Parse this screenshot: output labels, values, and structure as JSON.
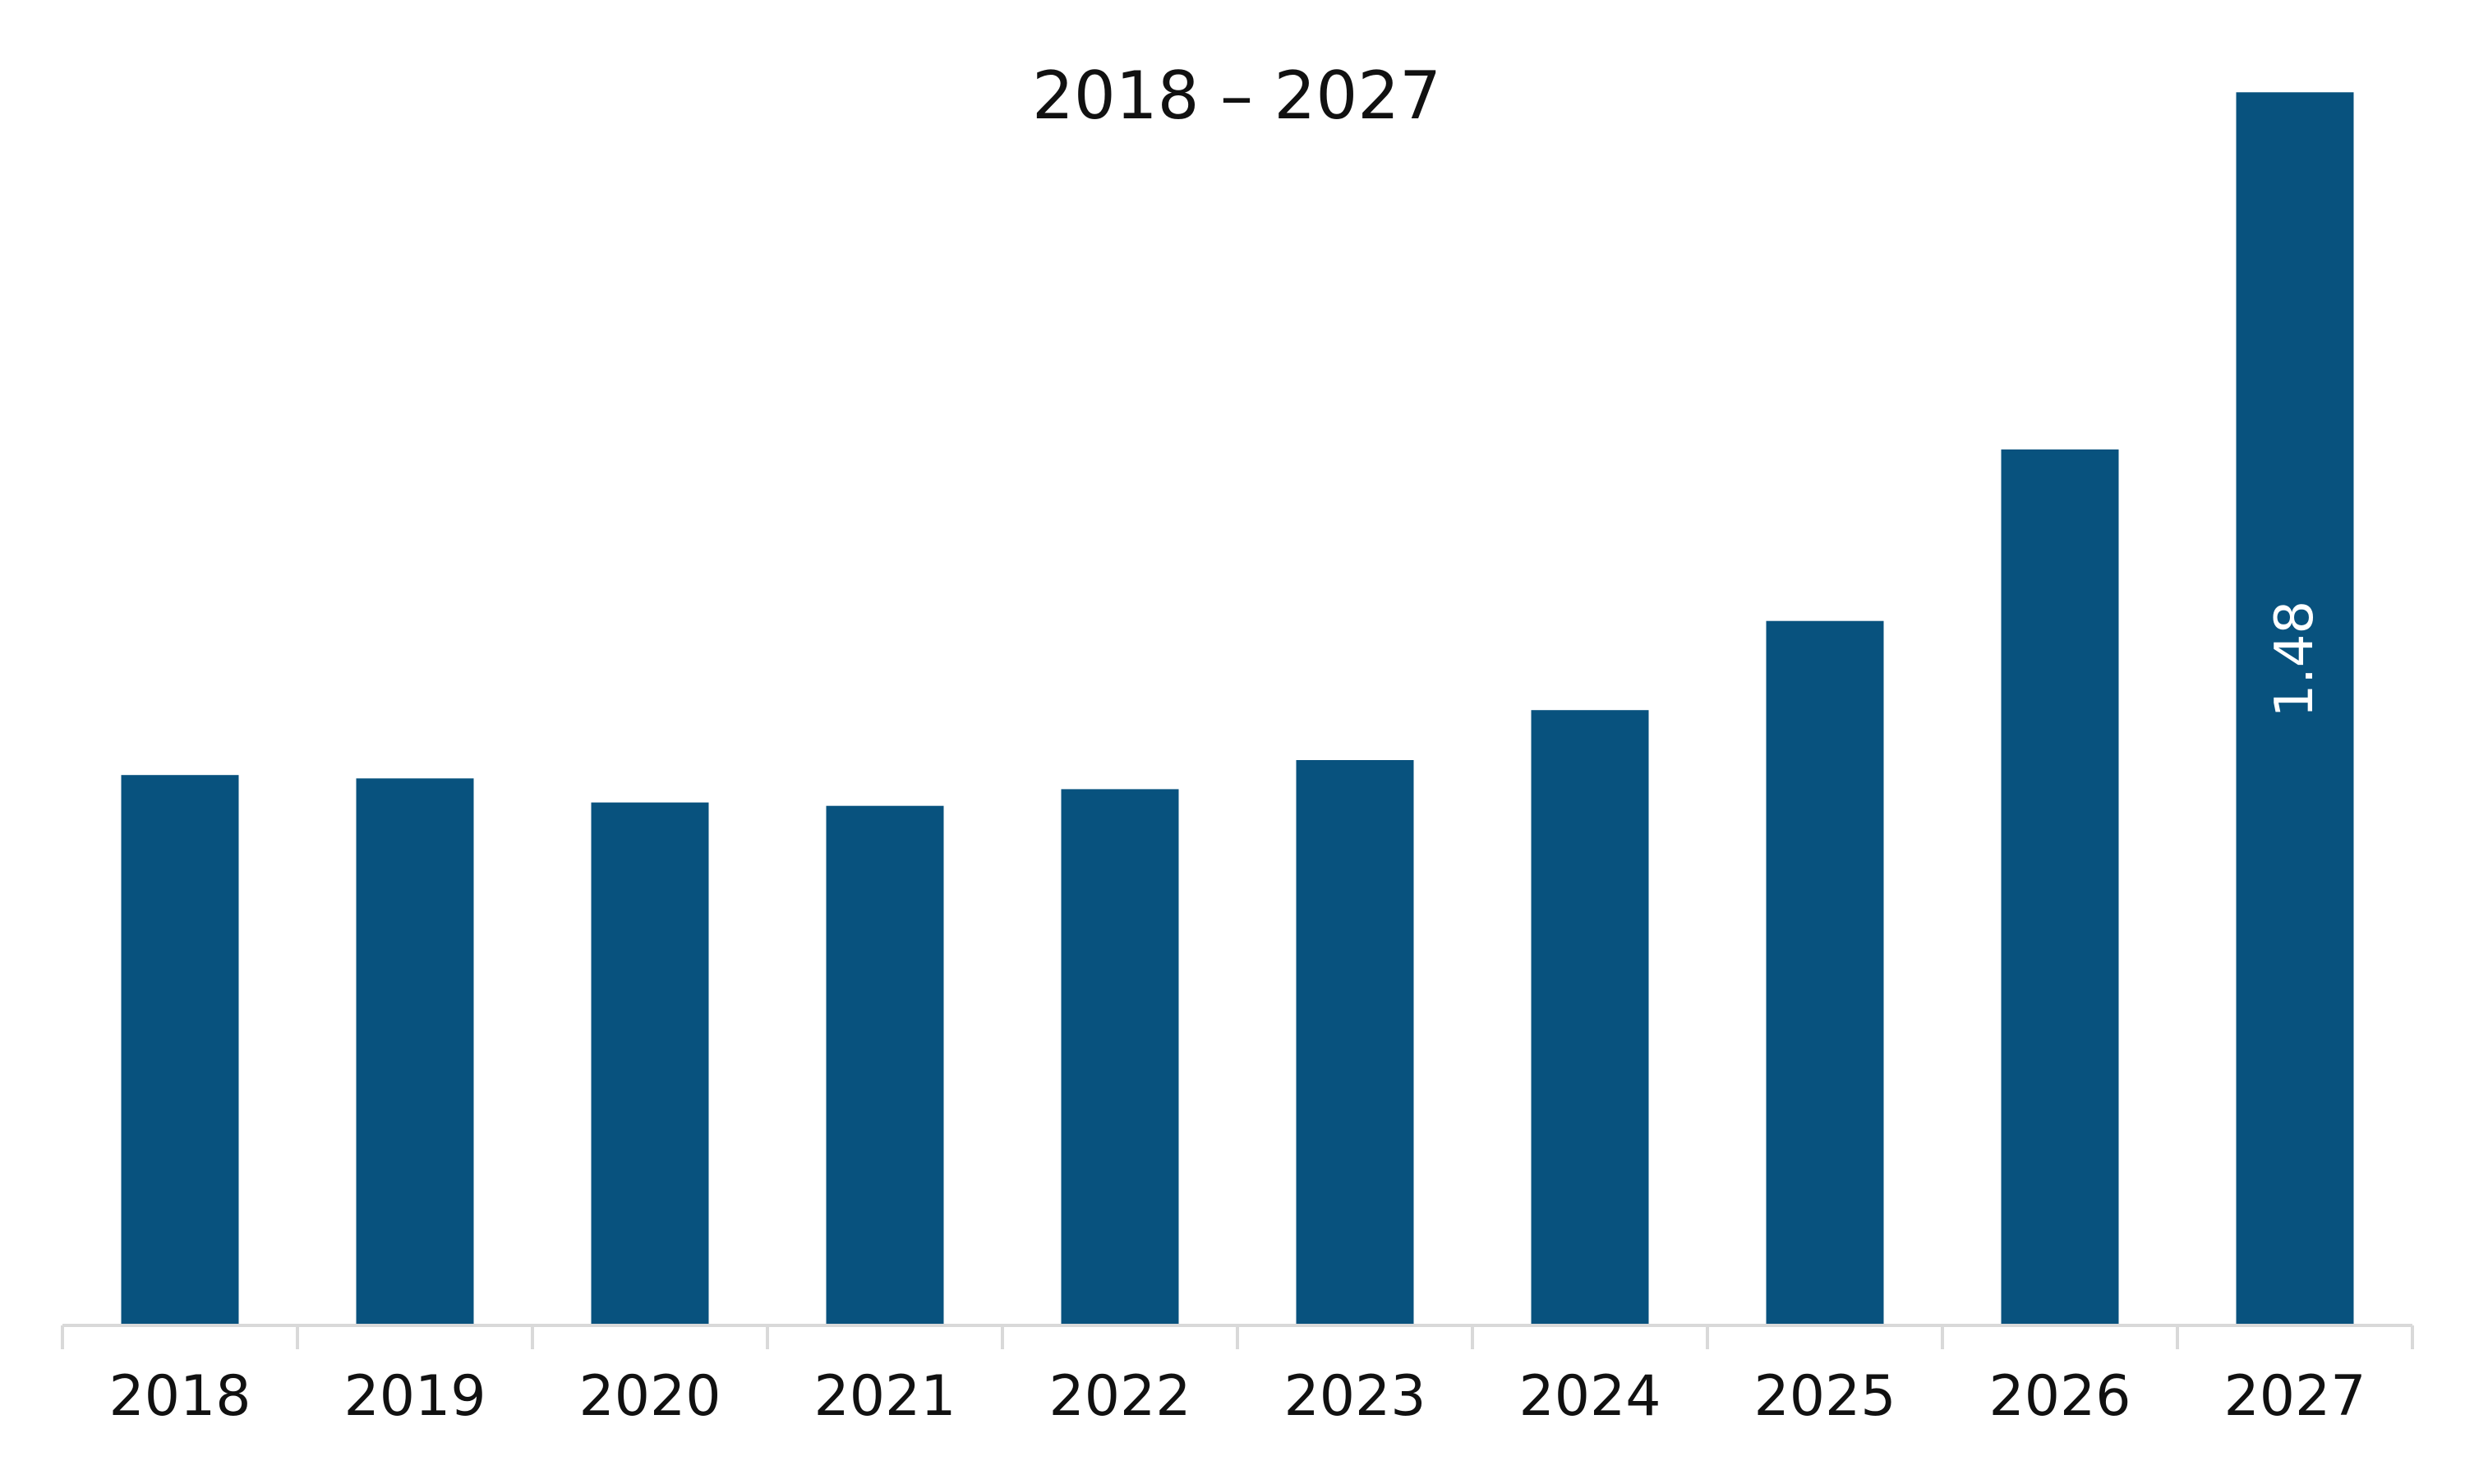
{
  "chart_data": {
    "type": "bar",
    "title": "2018 – 2027",
    "xlabel": "",
    "ylabel": "",
    "categories": [
      "2018",
      "2019",
      "2020",
      "2021",
      "2022",
      "2023",
      "2024",
      "2025",
      "2026",
      "2027"
    ],
    "values": [
      0.66,
      0.656,
      0.627,
      0.623,
      0.643,
      0.678,
      0.738,
      0.845,
      1.051,
      1.48
    ],
    "data_labels": [
      {
        "category": "2027",
        "text": "1.48"
      }
    ],
    "ylim": [
      0,
      1.5
    ],
    "grid": false,
    "legend": "none",
    "bar_color": "#08527E",
    "axis_color": "#D9D9D9"
  }
}
